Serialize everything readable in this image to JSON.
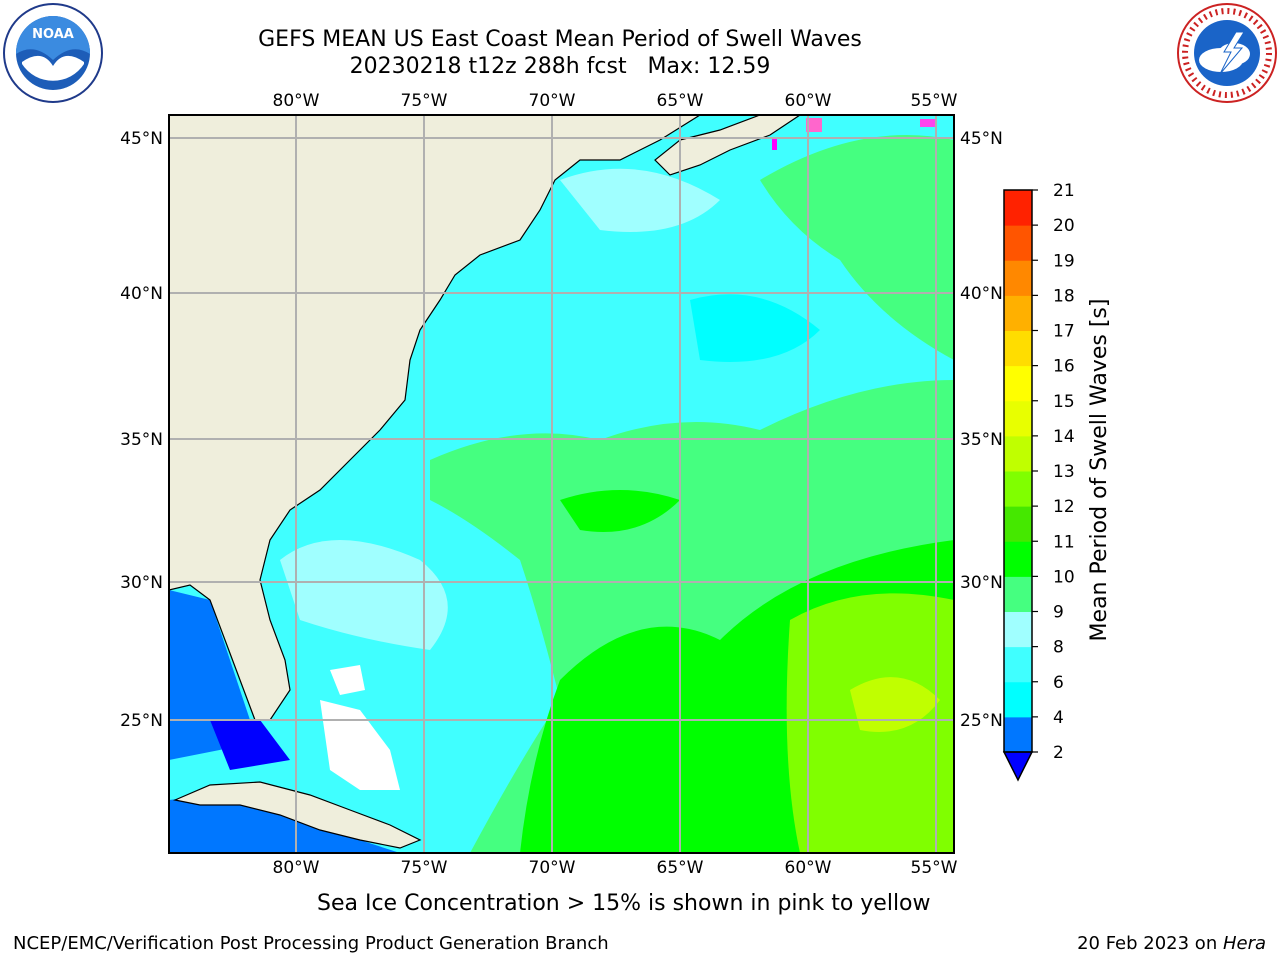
{
  "title": {
    "line1": "GEFS MEAN US East Coast Mean Period of Swell Waves",
    "line2": "20230218 t12z 288h fcst   Max: 12.59"
  },
  "map": {
    "longitude_labels": [
      "80°W",
      "75°W",
      "70°W",
      "65°W",
      "60°W",
      "55°W"
    ],
    "latitude_labels": [
      "45°N",
      "40°N",
      "35°N",
      "30°N",
      "25°N"
    ],
    "colors": {
      "land": "#efeedc",
      "ocean_base": "#40ffff",
      "grid": "#b0b0b0"
    }
  },
  "colorbar": {
    "title": "Mean Period of Swell Waves [s]",
    "tick_labels": [
      "2",
      "4",
      "6",
      "8",
      "9",
      "10",
      "11",
      "12",
      "13",
      "14",
      "15",
      "16",
      "17",
      "18",
      "19",
      "20",
      "21"
    ],
    "under_color": "#0000ff",
    "colors": [
      "#0077ff",
      "#00ffff",
      "#40ffff",
      "#a0ffff",
      "#45ff80",
      "#00ff00",
      "#45e800",
      "#80ff00",
      "#c0ff00",
      "#e8ff00",
      "#ffff00",
      "#ffdd00",
      "#ffb000",
      "#ff8800",
      "#ff5500",
      "#ff2200"
    ]
  },
  "subtitle": "Sea Ice Concentration > 15% is shown in pink to yellow",
  "footer": {
    "left": "NCEP/EMC/Verification Post Processing Product Generation Branch",
    "right_date": "20 Feb 2023 on ",
    "right_host": "Hera"
  },
  "logos": {
    "noaa_icon": "noaa-logo-icon",
    "nws_icon": "nws-logo-icon"
  }
}
